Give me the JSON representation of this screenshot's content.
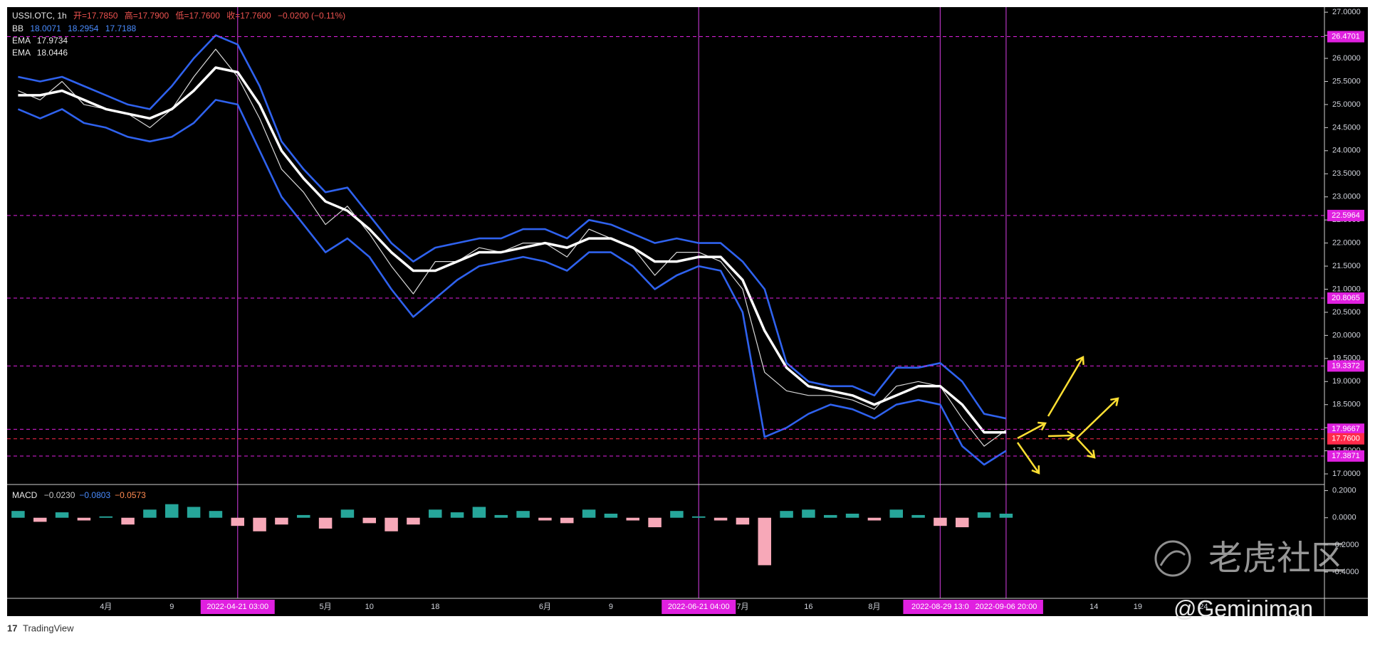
{
  "header": {
    "symbol": "USSI.OTC, 1h",
    "open": "开=17.7850",
    "high": "高=17.7900",
    "low": "低=17.7600",
    "close": "收=17.7600",
    "change": "−0.0200 (−0.11%)"
  },
  "indicators": [
    {
      "name": "BB",
      "values": [
        "18.0071",
        "18.2954",
        "17.7188"
      ]
    },
    {
      "name": "EMA",
      "values": [
        "17.9734"
      ]
    },
    {
      "name": "EMA",
      "values": [
        "18.0446"
      ]
    }
  ],
  "chart_data": [
    {
      "type": "line",
      "categories": [
        null,
        null,
        null,
        null,
        "4月",
        null,
        null,
        "9",
        null,
        null,
        "2022-04-21  03:00",
        null,
        null,
        null,
        "5月",
        null,
        "10",
        null,
        null,
        "18",
        null,
        null,
        null,
        null,
        "6月",
        null,
        null,
        "9",
        null,
        null,
        null,
        "2022-06-21  04:00",
        null,
        "7月",
        null,
        null,
        "16",
        null,
        null,
        "8月",
        null,
        null,
        "2022-08-29  13:0",
        null,
        null,
        "2022-09-06  20:00",
        null,
        null,
        null,
        "14",
        null,
        "19",
        null,
        null,
        "24",
        null,
        null,
        null,
        null,
        null
      ],
      "series": [
        {
          "color": "#d9d9d9",
          "width": 1.2,
          "values": [
            25.3,
            25.1,
            25.5,
            25.0,
            24.9,
            24.8,
            24.5,
            24.9,
            25.6,
            26.2,
            25.6,
            24.7,
            23.6,
            23.1,
            22.4,
            22.8,
            22.2,
            21.5,
            20.9,
            21.6,
            21.6,
            21.9,
            21.8,
            22.0,
            22.0,
            21.7,
            22.3,
            22.1,
            21.9,
            21.3,
            21.8,
            21.8,
            21.6,
            21.0,
            19.2,
            18.8,
            18.7,
            18.7,
            18.6,
            18.4,
            18.9,
            19.0,
            18.9,
            18.2,
            17.6,
            17.95,
            null,
            null,
            null,
            null,
            null,
            null,
            null,
            null,
            null,
            null,
            null,
            null,
            null,
            null
          ]
        },
        {
          "color": "#ffffff",
          "width": 3.5,
          "values": [
            25.2,
            25.2,
            25.3,
            25.1,
            24.9,
            24.8,
            24.7,
            24.9,
            25.3,
            25.8,
            25.7,
            25.0,
            24.0,
            23.4,
            22.9,
            22.7,
            22.3,
            21.8,
            21.4,
            21.4,
            21.6,
            21.8,
            21.8,
            21.9,
            22.0,
            21.9,
            22.1,
            22.1,
            21.9,
            21.6,
            21.6,
            21.7,
            21.7,
            21.2,
            20.1,
            19.3,
            18.9,
            18.8,
            18.7,
            18.5,
            18.7,
            18.9,
            18.9,
            18.5,
            17.9,
            17.9,
            null,
            null,
            null,
            null,
            null,
            null,
            null,
            null,
            null,
            null,
            null,
            null,
            null,
            null
          ]
        },
        {
          "color": "#2f62ee",
          "width": 2.6,
          "values": [
            25.6,
            25.5,
            25.6,
            25.4,
            25.2,
            25.0,
            24.9,
            25.4,
            26.0,
            26.5,
            26.3,
            25.4,
            24.2,
            23.6,
            23.1,
            23.2,
            22.6,
            22.0,
            21.6,
            21.9,
            22.0,
            22.1,
            22.1,
            22.3,
            22.3,
            22.1,
            22.5,
            22.4,
            22.2,
            22.0,
            22.1,
            22.0,
            22.0,
            21.6,
            21.0,
            19.4,
            19.0,
            18.9,
            18.9,
            18.7,
            19.3,
            19.3,
            19.4,
            19.0,
            18.3,
            18.2,
            null,
            null,
            null,
            null,
            null,
            null,
            null,
            null,
            null,
            null,
            null,
            null,
            null,
            null
          ]
        },
        {
          "color": "#2f62ee",
          "width": 2.6,
          "values": [
            24.9,
            24.7,
            24.9,
            24.6,
            24.5,
            24.3,
            24.2,
            24.3,
            24.6,
            25.1,
            25.0,
            24.0,
            23.0,
            22.4,
            21.8,
            22.1,
            21.7,
            21.0,
            20.4,
            20.8,
            21.2,
            21.5,
            21.6,
            21.7,
            21.6,
            21.4,
            21.8,
            21.8,
            21.5,
            21.0,
            21.3,
            21.5,
            21.4,
            20.5,
            17.8,
            18.0,
            18.3,
            18.5,
            18.4,
            18.2,
            18.5,
            18.6,
            18.5,
            17.6,
            17.2,
            17.5,
            null,
            null,
            null,
            null,
            null,
            null,
            null,
            null,
            null,
            null,
            null,
            null,
            null,
            null
          ]
        }
      ],
      "ylim": [
        16.77,
        27.11
      ],
      "yticks": [
        {
          "value": 17,
          "label": "17.0000"
        },
        {
          "value": 17.5,
          "label": "17.5000"
        },
        {
          "value": 18,
          "label": "18.0000"
        },
        {
          "value": 18.5,
          "label": "18.5000"
        },
        {
          "value": 19,
          "label": "19.0000"
        },
        {
          "value": 19.5,
          "label": "19.5000"
        },
        {
          "value": 20,
          "label": "20.0000"
        },
        {
          "value": 20.5,
          "label": "20.5000"
        },
        {
          "value": 21,
          "label": "21.0000"
        },
        {
          "value": 21.5,
          "label": "21.5000"
        },
        {
          "value": 22,
          "label": "22.0000"
        },
        {
          "value": 22.5,
          "label": "22.5000"
        },
        {
          "value": 23,
          "label": "23.0000"
        },
        {
          "value": 23.5,
          "label": "23.5000"
        },
        {
          "value": 24,
          "label": "24.0000"
        },
        {
          "value": 24.5,
          "label": "24.5000"
        },
        {
          "value": 25,
          "label": "25.0000"
        },
        {
          "value": 25.5,
          "label": "25.5000"
        },
        {
          "value": 26,
          "label": "26.0000"
        },
        {
          "value": 26.5,
          "label": "26.5000"
        },
        {
          "value": 27,
          "label": "27.0000"
        }
      ],
      "levels": [
        {
          "value": 26.4701,
          "label": "26.4701",
          "color": "#e020e0"
        },
        {
          "value": 22.5964,
          "label": "22.5964",
          "color": "#e020e0"
        },
        {
          "value": 20.8065,
          "label": "20.8065",
          "color": "#e020e0"
        },
        {
          "value": 19.3372,
          "label": "19.3372",
          "color": "#e020e0"
        },
        {
          "value": 17.9667,
          "label": "17.9667",
          "color": "#e020e0"
        },
        {
          "value": 17.76,
          "label": "17.7600",
          "color": "#ff2a4a"
        },
        {
          "value": 17.3871,
          "label": "17.3871",
          "color": "#e020e0"
        }
      ],
      "grid": false
    },
    {
      "type": "bar",
      "title": "MACD",
      "readout": [
        {
          "label": "−0.0230",
          "color": "#c8c8c8"
        },
        {
          "label": "−0.0803",
          "color": "#4a8cff"
        },
        {
          "label": "−0.0573",
          "color": "#ff8a50"
        }
      ],
      "values": [
        0.05,
        -0.03,
        0.04,
        -0.02,
        0.01,
        -0.05,
        0.06,
        0.1,
        0.08,
        0.05,
        -0.06,
        -0.1,
        -0.05,
        0.02,
        -0.08,
        0.06,
        -0.04,
        -0.1,
        -0.05,
        0.06,
        0.04,
        0.08,
        0.02,
        0.05,
        -0.02,
        -0.04,
        0.06,
        0.03,
        -0.02,
        -0.07,
        0.05,
        0.01,
        -0.02,
        -0.05,
        -0.35,
        0.05,
        0.06,
        0.02,
        0.03,
        -0.02,
        0.06,
        0.02,
        -0.06,
        -0.07,
        0.04,
        0.03
      ],
      "up_color": "#26a69a",
      "down_color": "#f7a8b8",
      "ylim": [
        -0.594,
        0.245
      ],
      "yticks": [
        {
          "value": 0.2,
          "label": "0.2000"
        },
        {
          "value": 0,
          "label": "0.0000"
        },
        {
          "value": -0.2,
          "label": "-0.2000"
        },
        {
          "value": -0.4,
          "label": "-0.4000"
        }
      ]
    }
  ],
  "watermark": "老虎社区",
  "author": "@Geminiman",
  "brand": "TradingView"
}
